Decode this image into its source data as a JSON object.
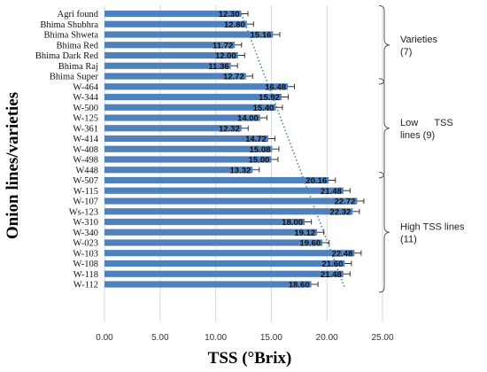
{
  "chart_data": {
    "type": "bar",
    "orientation": "horizontal",
    "title": "",
    "xlabel": "TSS (°Brix)",
    "ylabel": "Onion lines/varieties",
    "xlim": [
      0,
      25
    ],
    "xticks": [
      "0.00",
      "5.00",
      "10.00",
      "15.00",
      "20.00",
      "25.00"
    ],
    "grid": "vertical",
    "bar_color": "#4f81bd",
    "trendline": {
      "style": "dotted",
      "color": "#4f81bd",
      "from": 12.3,
      "to": 21.6
    },
    "categories": [
      "Agri found",
      "Bhima Shubhra",
      "Bhima Shweta",
      "Bhima Red",
      "Bhima Dark Red",
      "Bhima Raj",
      "Bhima Super",
      "W-464",
      "W-344",
      "W-500",
      "W-125",
      "W-361",
      "W-414",
      "W-408",
      "W-498",
      "W448",
      "W-507",
      "W-115",
      "W-107",
      "Ws-123",
      "W-310",
      "W-340",
      "W-023",
      "W-103",
      "W-108",
      "W-118",
      "W-112"
    ],
    "values": [
      12.3,
      12.8,
      15.16,
      11.72,
      12.0,
      11.36,
      12.72,
      16.48,
      15.92,
      15.4,
      14.0,
      12.32,
      14.72,
      15.08,
      15.0,
      13.32,
      20.16,
      21.48,
      22.72,
      22.32,
      18.0,
      19.12,
      19.6,
      22.48,
      21.6,
      21.48,
      18.6
    ],
    "value_labels": [
      "12.30",
      "12.80",
      "15.16",
      "11.72",
      "12.00",
      "11.36",
      "12.72",
      "16.48",
      "15.92",
      "15.40",
      "14.00",
      "12.32",
      "14.72",
      "15.08",
      "15.00",
      "13.32",
      "20.16",
      "21.48",
      "22.72",
      "22.32",
      "18.00",
      "19.12",
      "19.60",
      "22.48",
      "21.60",
      "21.48",
      "18.60"
    ],
    "errors": [
      0.6,
      0.6,
      0.6,
      0.6,
      0.6,
      0.6,
      0.6,
      0.6,
      0.6,
      0.6,
      0.6,
      0.6,
      0.6,
      0.6,
      0.6,
      0.6,
      0.6,
      0.6,
      0.6,
      0.6,
      0.6,
      0.6,
      0.6,
      0.6,
      0.6,
      0.6,
      0.6
    ],
    "groups": [
      {
        "lines": [
          "Varieties",
          "(7)"
        ],
        "start": 0,
        "end": 6
      },
      {
        "lines": [
          "Low      TSS",
          "lines (9)"
        ],
        "start": 7,
        "end": 15
      },
      {
        "lines": [
          "High TSS lines",
          "(11)"
        ],
        "start": 16,
        "end": 26
      }
    ]
  }
}
